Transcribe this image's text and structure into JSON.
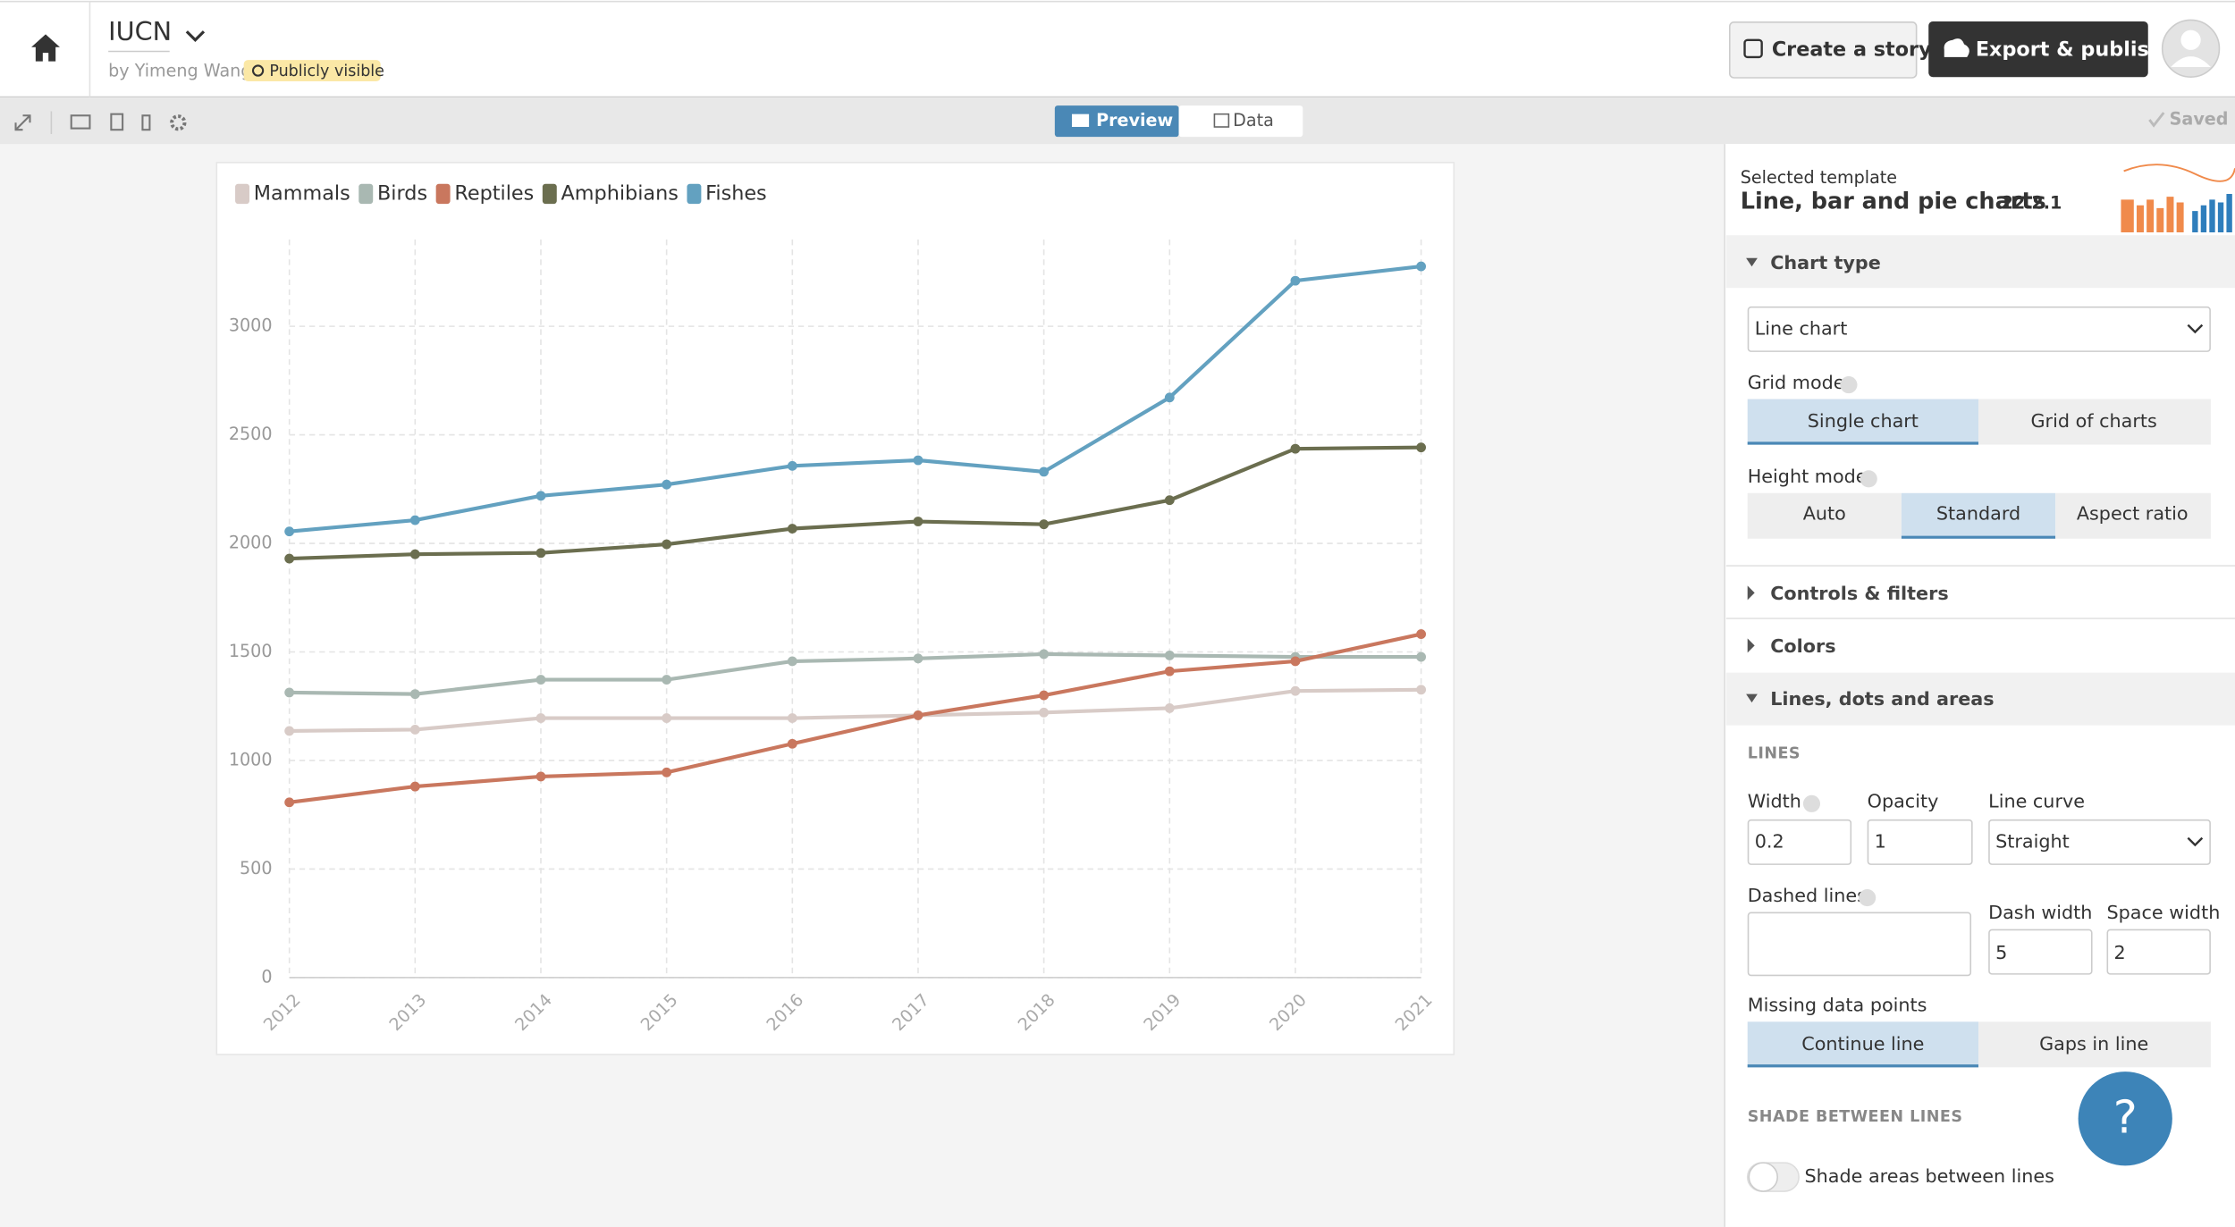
{
  "header": {
    "title": "IUCN",
    "byline": "by Yimeng Wang",
    "visibility": "Publicly visible",
    "create_story": "Create a story",
    "export": "Export & publish"
  },
  "toolbar": {
    "preview": "Preview",
    "data": "Data",
    "saved": "Saved"
  },
  "chart_data": {
    "type": "line",
    "categories": [
      "2012",
      "2013",
      "2014",
      "2015",
      "2016",
      "2017",
      "2018",
      "2019",
      "2020",
      "2021"
    ],
    "series": [
      {
        "name": "Mammals",
        "color": "#d8cbc7",
        "values": [
          1136,
          1142,
          1195,
          1195,
          1195,
          1208,
          1221,
          1241,
          1320,
          1326
        ]
      },
      {
        "name": "Birds",
        "color": "#a9b8b2",
        "values": [
          1313,
          1306,
          1372,
          1372,
          1457,
          1470,
          1490,
          1484,
          1477,
          1477
        ]
      },
      {
        "name": "Reptiles",
        "color": "#c9775e",
        "values": [
          807,
          880,
          926,
          945,
          1077,
          1208,
          1300,
          1411,
          1457,
          1582
        ]
      },
      {
        "name": "Amphibians",
        "color": "#6b6e4f",
        "values": [
          1930,
          1950,
          1956,
          1996,
          2068,
          2101,
          2088,
          2199,
          2436,
          2442
        ]
      },
      {
        "name": "Fishes",
        "color": "#63a1c0",
        "values": [
          2055,
          2107,
          2219,
          2271,
          2357,
          2383,
          2330,
          2672,
          3210,
          3276
        ]
      }
    ],
    "ylim": [
      0,
      3400
    ],
    "yticks": [
      0,
      500,
      1000,
      1500,
      2000,
      2500,
      3000
    ],
    "grid": true,
    "legend": "top-left"
  },
  "panel": {
    "template_label": "Selected template",
    "template_name": "Line, bar and pie charts",
    "template_version": "22.2.1",
    "chart_type": "Chart type",
    "chart_type_value": "Line chart",
    "grid_mode": "Grid mode",
    "grid_options": [
      "Single chart",
      "Grid of charts"
    ],
    "height_mode": "Height mode",
    "height_options": [
      "Auto",
      "Standard",
      "Aspect ratio"
    ],
    "controls": "Controls & filters",
    "colors": "Colors",
    "lines_dots": "Lines, dots and areas",
    "lines_heading": "LINES",
    "width_label": "Width",
    "width_value": 0.2,
    "opacity_label": "Opacity",
    "opacity_value": 1,
    "curve_label": "Line curve",
    "curve_value": "Straight",
    "dashed_label": "Dashed lines",
    "dash_width_label": "Dash width",
    "dash_width_value": 5,
    "space_width_label": "Space width",
    "space_width_value": 2,
    "missing_label": "Missing data points",
    "missing_options": [
      "Continue line",
      "Gaps in line"
    ],
    "shade_heading": "SHADE BETWEEN LINES",
    "shade_toggle": "Shade areas between lines",
    "help": "?"
  }
}
